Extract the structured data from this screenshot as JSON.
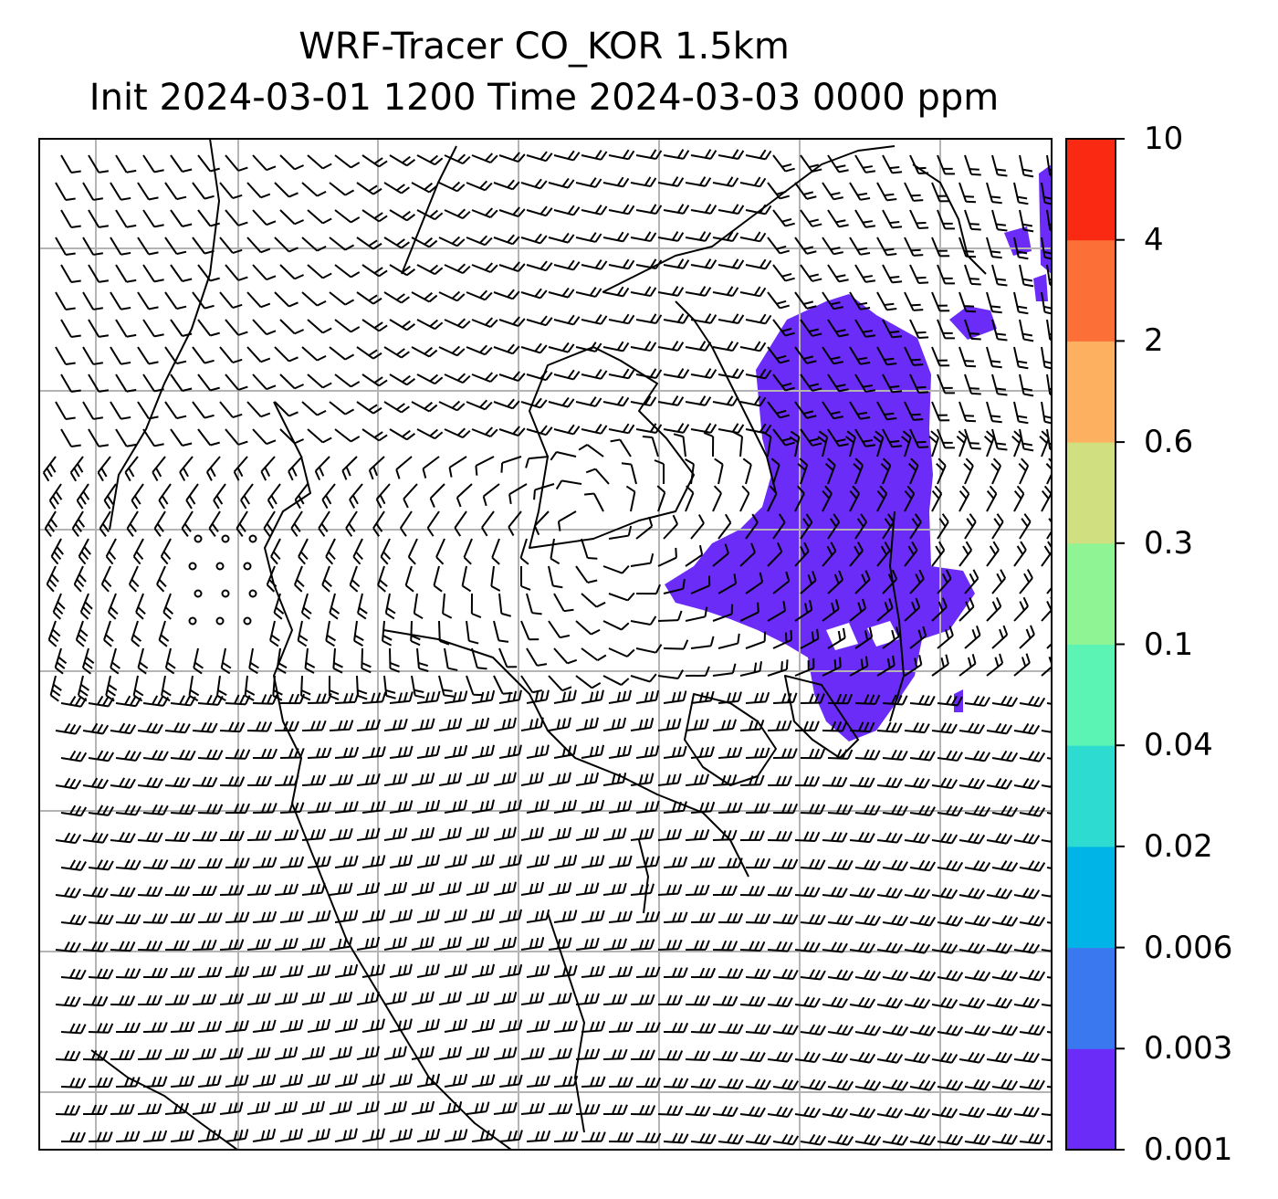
{
  "title": {
    "line1": "WRF-Tracer CO_KOR 1.5km",
    "line2": "Init 2024-03-01 1200 Time 2024-03-03 0000 ppm"
  },
  "colorbar": {
    "unit": "ppm",
    "levels": [
      "0.001",
      "0.003",
      "0.006",
      "0.02",
      "0.04",
      "0.1",
      "0.3",
      "0.6",
      "2",
      "4",
      "10"
    ],
    "colors": [
      "#6a2cf6",
      "#3a78f0",
      "#00b4e8",
      "#2ddbd0",
      "#5cf4b4",
      "#8ef494",
      "#d0e080",
      "#fcb060",
      "#fc7038",
      "#fa2a12"
    ]
  },
  "map": {
    "field": "CO tracer concentration with wind barbs",
    "plume_level": "0.001-0.003 ppm",
    "plume_color": "#6a2cf6",
    "gridlines": true,
    "gridline_color": "#b4b4b4"
  }
}
